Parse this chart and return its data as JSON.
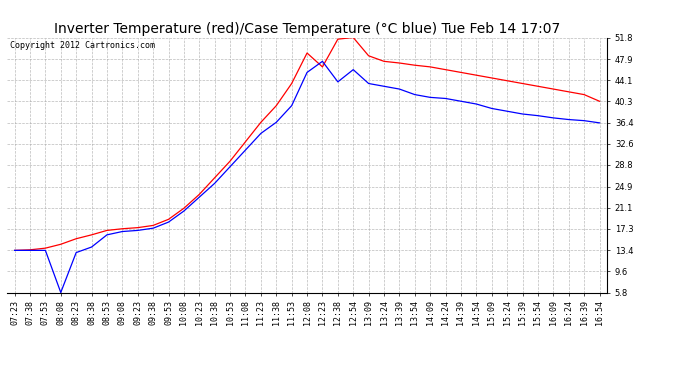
{
  "title": "Inverter Temperature (red)/Case Temperature (°C blue) Tue Feb 14 17:07",
  "copyright_text": "Copyright 2012 Cartronics.com",
  "background_color": "#ffffff",
  "plot_bg_color": "#ffffff",
  "grid_color": "#aaaaaa",
  "ylim": [
    5.8,
    51.8
  ],
  "yticks": [
    5.8,
    9.6,
    13.4,
    17.3,
    21.1,
    24.9,
    28.8,
    32.6,
    36.4,
    40.3,
    44.1,
    47.9,
    51.8
  ],
  "red_color": "#ff0000",
  "blue_color": "#0000ff",
  "title_fontsize": 10,
  "tick_fontsize": 6,
  "copyright_fontsize": 6,
  "x_labels": [
    "07:23",
    "07:38",
    "07:53",
    "08:08",
    "08:23",
    "08:38",
    "08:53",
    "09:08",
    "09:23",
    "09:38",
    "09:53",
    "10:08",
    "10:23",
    "10:38",
    "10:53",
    "11:08",
    "11:23",
    "11:38",
    "11:53",
    "12:08",
    "12:23",
    "12:38",
    "12:54",
    "13:09",
    "13:24",
    "13:39",
    "13:54",
    "14:09",
    "14:24",
    "14:39",
    "14:54",
    "15:09",
    "15:24",
    "15:39",
    "15:54",
    "16:09",
    "16:24",
    "16:39",
    "16:54"
  ],
  "red_vals": [
    13.4,
    13.5,
    13.8,
    14.5,
    15.5,
    16.2,
    17.0,
    17.3,
    17.5,
    17.9,
    19.0,
    21.0,
    23.5,
    26.5,
    29.5,
    33.0,
    36.5,
    39.5,
    43.5,
    49.0,
    46.5,
    51.5,
    51.8,
    48.5,
    47.5,
    47.2,
    46.8,
    46.5,
    46.0,
    45.5,
    45.0,
    44.5,
    44.0,
    43.5,
    43.0,
    42.5,
    42.0,
    41.5,
    40.3
  ],
  "blue_vals": [
    13.4,
    13.4,
    13.4,
    5.8,
    13.0,
    14.0,
    16.2,
    16.8,
    17.0,
    17.4,
    18.5,
    20.5,
    23.0,
    25.5,
    28.5,
    31.5,
    34.5,
    36.5,
    39.5,
    45.5,
    47.5,
    43.8,
    46.0,
    43.5,
    43.0,
    42.5,
    41.5,
    41.0,
    40.8,
    40.3,
    39.8,
    39.0,
    38.5,
    38.0,
    37.7,
    37.3,
    37.0,
    36.8,
    36.4
  ]
}
